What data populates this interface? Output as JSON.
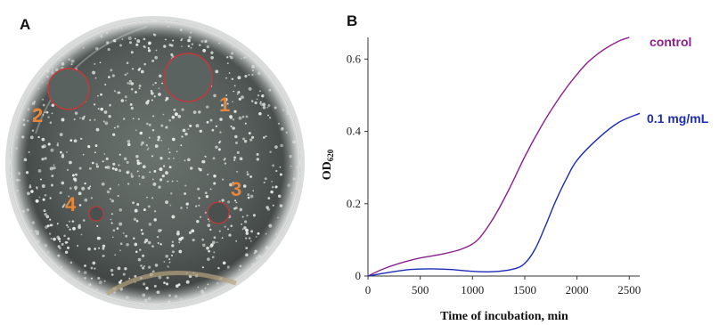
{
  "panels": {
    "a_label": "A",
    "b_label": "B"
  },
  "petri_dish": {
    "zones": [
      {
        "label": "1"
      },
      {
        "label": "2"
      },
      {
        "label": "3"
      },
      {
        "label": "4"
      }
    ],
    "zone_ring_color": "#c0393b",
    "label_color": "#e8863a"
  },
  "chart_data": {
    "type": "line",
    "title": "",
    "xlabel": "Time of incubation, min",
    "ylabel_main": "OD",
    "ylabel_sub": "620",
    "xlim": [
      0,
      2600
    ],
    "ylim": [
      0,
      0.66
    ],
    "x_ticks": [
      0,
      500,
      1000,
      1500,
      2000,
      2500
    ],
    "y_ticks": [
      0,
      0.2,
      0.4,
      0.6
    ],
    "y_tick_labels": [
      "0",
      "0.2",
      "0.4",
      "0.6"
    ],
    "series": [
      {
        "name": "control",
        "color": "#8e1f8e",
        "x": [
          0,
          150,
          300,
          500,
          700,
          900,
          1050,
          1200,
          1350,
          1500,
          1650,
          1800,
          1950,
          2100,
          2250,
          2400,
          2500
        ],
        "y": [
          0,
          0.02,
          0.035,
          0.05,
          0.06,
          0.075,
          0.1,
          0.16,
          0.24,
          0.33,
          0.41,
          0.48,
          0.54,
          0.59,
          0.625,
          0.65,
          0.66
        ]
      },
      {
        "name": "0.1 mg/mL",
        "color": "#1c2bb8",
        "x": [
          0,
          200,
          400,
          600,
          800,
          1000,
          1200,
          1400,
          1500,
          1600,
          1700,
          1800,
          1900,
          2000,
          2200,
          2400,
          2600
        ],
        "y": [
          0,
          0.01,
          0.018,
          0.02,
          0.018,
          0.013,
          0.012,
          0.02,
          0.035,
          0.075,
          0.14,
          0.21,
          0.27,
          0.32,
          0.38,
          0.425,
          0.45
        ]
      }
    ]
  }
}
